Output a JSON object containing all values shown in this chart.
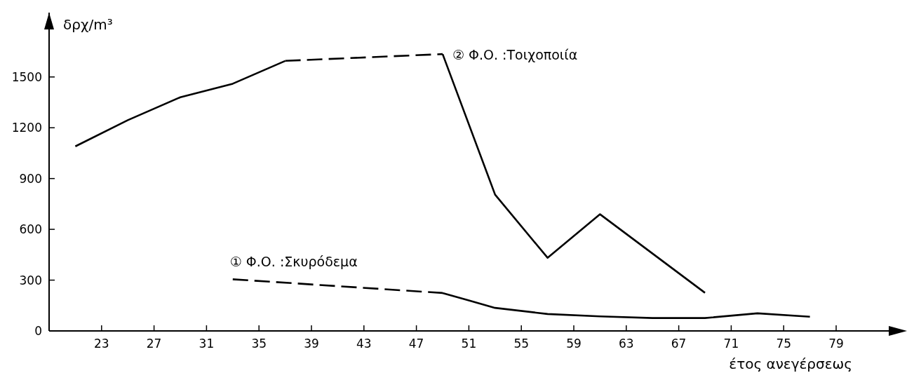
{
  "chart_data": {
    "type": "line",
    "xlabel": "έτος ανεγέρσεως",
    "ylabel": "δρχ/m³",
    "xlim": [
      19,
      84.4
    ],
    "ylim": [
      0,
      1880
    ],
    "xticks": [
      23,
      27,
      31,
      35,
      39,
      43,
      47,
      51,
      55,
      59,
      63,
      67,
      71,
      75,
      79
    ],
    "yticks": [
      0,
      300,
      600,
      900,
      1200,
      1500
    ],
    "grid": false,
    "marker": "none",
    "series": [
      {
        "name": "① Φ.Ο. :Σκυρόδεμα",
        "color": "#000000",
        "line_style": "dashed",
        "x": [
          33,
          49
        ],
        "values": [
          305,
          224
        ]
      },
      {
        "color": "#000000",
        "line_style": "solid",
        "x": [
          49,
          51,
          53,
          57,
          61,
          65,
          69,
          73,
          77
        ],
        "values": [
          224,
          180,
          136,
          100,
          86,
          76,
          76,
          104,
          84
        ]
      },
      {
        "color": "#000000",
        "line_style": "solid",
        "x": [
          21,
          25,
          29,
          33,
          37
        ],
        "values": [
          1090,
          1245,
          1380,
          1460,
          1595
        ]
      },
      {
        "name": "② Φ.Ο. :Τοιχοποιία",
        "color": "#000000",
        "line_style": "dashed",
        "x": [
          37,
          49
        ],
        "values": [
          1595,
          1635
        ]
      },
      {
        "color": "#000000",
        "line_style": "solid",
        "x": [
          49,
          53,
          57,
          61,
          69
        ],
        "values": [
          1635,
          805,
          432,
          689,
          225
        ]
      }
    ]
  }
}
